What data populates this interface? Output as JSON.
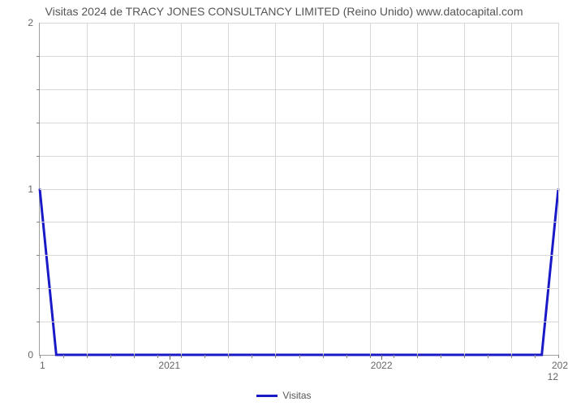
{
  "chart": {
    "type": "line",
    "title": "Visitas 2024 de TRACY JONES CONSULTANCY LIMITED (Reino Unido) www.datocapital.com",
    "title_fontsize": 14,
    "title_color": "#555555",
    "background_color": "#ffffff",
    "grid_color": "#d8d8d8",
    "axis_color": "#a0a0a0",
    "tick_label_color": "#666666",
    "tick_fontsize": 12,
    "y": {
      "min": 0,
      "max": 2,
      "major_ticks": [
        0,
        1,
        2
      ],
      "minor_tick_count_between": 4
    },
    "x": {
      "min": 1,
      "max": 12,
      "left_end_label": "1",
      "right_end_label": "12",
      "major_ticks": [
        {
          "value": 3.75,
          "label": "2021"
        },
        {
          "value": 8.25,
          "label": "2022"
        }
      ],
      "right_boundary_label": "202",
      "minor_tick_step": 0.5
    },
    "series": [
      {
        "name": "Visitas",
        "color": "#1919c8",
        "line_width": 3,
        "x": [
          1,
          1.35,
          11.65,
          12
        ],
        "y": [
          1,
          0,
          0,
          1
        ]
      }
    ],
    "legend": {
      "position": "bottom-center",
      "items": [
        {
          "label": "Visitas",
          "color": "#1919c8"
        }
      ]
    }
  }
}
